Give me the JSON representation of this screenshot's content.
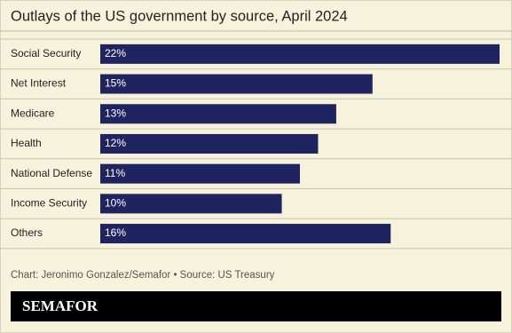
{
  "chart_data": {
    "type": "bar",
    "orientation": "horizontal",
    "title": "Outlays of the US government by source, April 2024",
    "categories": [
      "Social Security",
      "Net Interest",
      "Medicare",
      "Health",
      "National Defense",
      "Income Security",
      "Others"
    ],
    "values": [
      22,
      15,
      13,
      12,
      11,
      10,
      16
    ],
    "value_labels": [
      "22%",
      "15%",
      "13%",
      "12%",
      "11%",
      "10%",
      "16%"
    ],
    "color": "#1f2461",
    "source": "Chart: Jeronimo Gonzalez/Semafor • Source: US Treasury",
    "logo": "SEMAFOR"
  }
}
